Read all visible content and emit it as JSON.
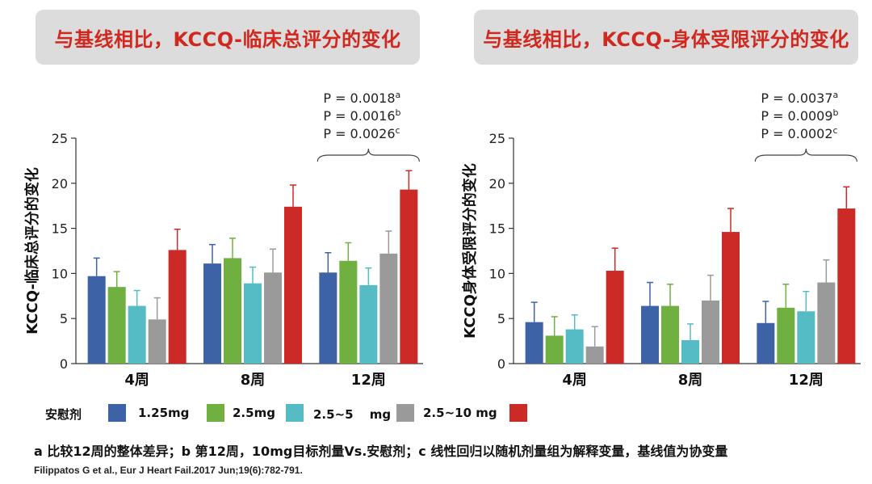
{
  "titles": {
    "left": "与基线相比，KCCQ-临床总评分的变化",
    "right": "与基线相比，KCCQ-身体受限评分的变化"
  },
  "legend": {
    "items": [
      {
        "label": "安慰剂",
        "color": "#3d62a6"
      },
      {
        "label": "1.25mg",
        "color": "#6fb040"
      },
      {
        "label": "2.5mg",
        "color": "#55bcc6"
      },
      {
        "label": "2.5~5　 mg",
        "color": "#9a9a9a"
      },
      {
        "label": "2.5~10 mg",
        "color": "#cc2a27"
      }
    ]
  },
  "footnote": "a 比较12周的整体差异；b 第12周，10mg目标剂量Vs.安慰剂；c 线性回归以随机剂量组为解释变量，基线值为协变量",
  "citation": "Filippatos G et al., Eur J Heart Fail.2017 Jun;19(6):782-791.",
  "chart_data": [
    {
      "type": "bar",
      "title": "与基线相比，KCCQ-临床总评分的变化",
      "ylabel": "KCCQ-临床总评分的变化",
      "xlabel": "",
      "categories": [
        "4周",
        "8周",
        "12周"
      ],
      "ylim": [
        0,
        25
      ],
      "yticks": [
        0,
        5,
        10,
        15,
        20,
        25
      ],
      "series": [
        {
          "name": "安慰剂",
          "color": "#3d62a6",
          "values": [
            9.7,
            11.1,
            10.1
          ],
          "errors": [
            2.0,
            2.1,
            2.2
          ]
        },
        {
          "name": "1.25mg",
          "color": "#6fb040",
          "values": [
            8.5,
            11.7,
            11.4
          ],
          "errors": [
            1.7,
            2.2,
            2.0
          ]
        },
        {
          "name": "2.5mg",
          "color": "#55bcc6",
          "values": [
            6.4,
            8.9,
            8.7
          ],
          "errors": [
            1.7,
            1.8,
            1.9
          ]
        },
        {
          "name": "2.5~5 mg",
          "color": "#9a9a9a",
          "values": [
            4.9,
            10.1,
            12.2
          ],
          "errors": [
            2.4,
            2.6,
            2.5
          ]
        },
        {
          "name": "2.5~10 mg",
          "color": "#cc2a27",
          "values": [
            12.6,
            17.4,
            19.3
          ],
          "errors": [
            2.3,
            2.4,
            2.1
          ]
        }
      ],
      "annotation": {
        "category": "12周",
        "lines": [
          "P = 0.0018",
          "P = 0.0016",
          "P = 0.0026"
        ],
        "sups": [
          "a",
          "b",
          "c"
        ]
      }
    },
    {
      "type": "bar",
      "title": "与基线相比，KCCQ-身体受限评分的变化",
      "ylabel": "KCCQ身体受限评分的变化",
      "xlabel": "",
      "categories": [
        "4周",
        "8周",
        "12周"
      ],
      "ylim": [
        0,
        25
      ],
      "yticks": [
        0,
        5,
        10,
        15,
        20,
        25
      ],
      "series": [
        {
          "name": "安慰剂",
          "color": "#3d62a6",
          "values": [
            4.6,
            6.4,
            4.5
          ],
          "errors": [
            2.2,
            2.6,
            2.4
          ]
        },
        {
          "name": "1.25mg",
          "color": "#6fb040",
          "values": [
            3.1,
            6.4,
            6.2
          ],
          "errors": [
            2.1,
            2.4,
            2.6
          ]
        },
        {
          "name": "2.5mg",
          "color": "#55bcc6",
          "values": [
            3.8,
            2.6,
            5.8
          ],
          "errors": [
            1.6,
            1.8,
            2.2
          ]
        },
        {
          "name": "2.5~5 mg",
          "color": "#9a9a9a",
          "values": [
            1.9,
            7.0,
            9.0
          ],
          "errors": [
            2.2,
            2.8,
            2.5
          ]
        },
        {
          "name": "2.5~10 mg",
          "color": "#cc2a27",
          "values": [
            10.3,
            14.6,
            17.2
          ],
          "errors": [
            2.5,
            2.6,
            2.4
          ]
        }
      ],
      "annotation": {
        "category": "12周",
        "lines": [
          "P = 0.0037",
          "P = 0.0009",
          "P = 0.0002"
        ],
        "sups": [
          "a",
          "b",
          "c"
        ]
      }
    }
  ]
}
